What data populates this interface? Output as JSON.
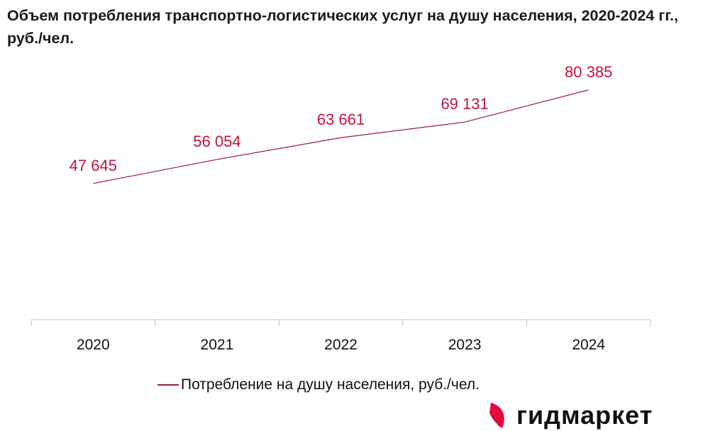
{
  "chart_data": {
    "type": "line",
    "title": "Объем потребления транспортно-логистических услуг на душу населения, 2020-2024 гг., руб./чел.",
    "categories": [
      "2020",
      "2021",
      "2022",
      "2023",
      "2024"
    ],
    "series": [
      {
        "name": "Потребление на душу населения, руб./чел.",
        "values": [
          47645,
          56054,
          63661,
          69131,
          80385
        ],
        "labels": [
          "47 645",
          "56 054",
          "63 661",
          "69 131",
          "80 385"
        ],
        "color": "#9b1b3f",
        "label_color": "#c0143c"
      }
    ],
    "ylim": [
      0,
      90000
    ],
    "grid": false,
    "legend": "bottom"
  },
  "logo": {
    "text": "гидмаркет",
    "color": "#e30b3c"
  }
}
